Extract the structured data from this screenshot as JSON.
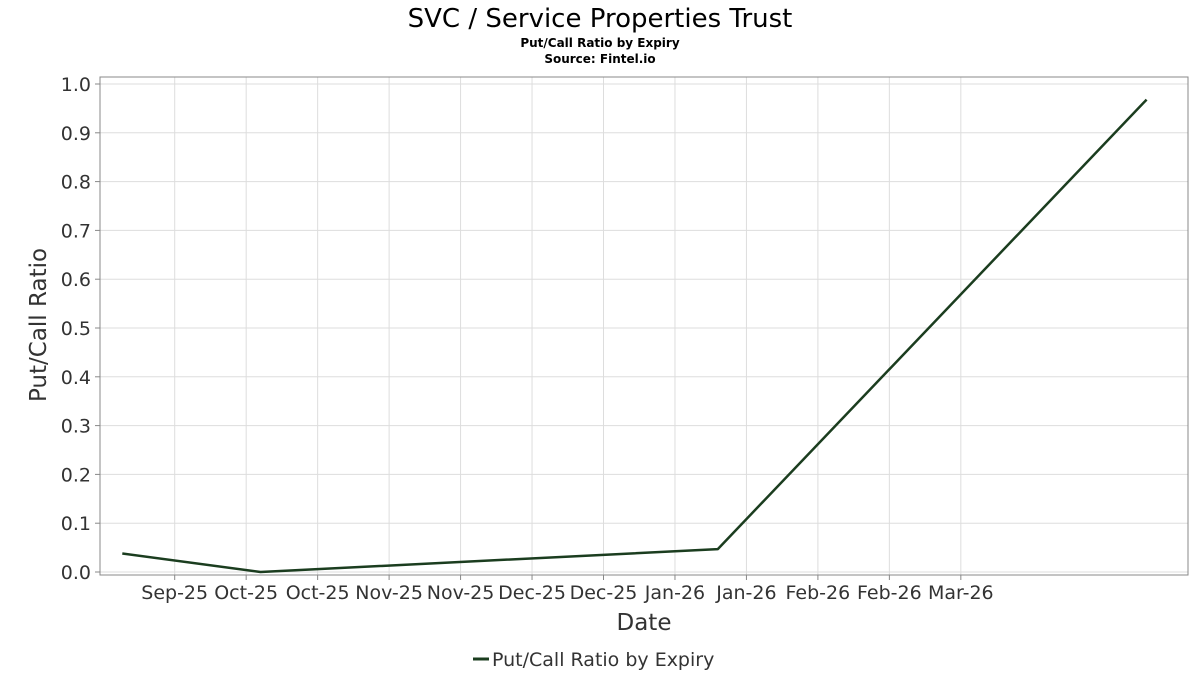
{
  "chart_data": {
    "type": "line",
    "title": "SVC / Service Properties Trust",
    "subtitle": "Put/Call Ratio by Expiry",
    "source": "Source: Fintel.io",
    "xlabel": "Date",
    "ylabel": "Put/Call Ratio",
    "x_range": [
      "2025-08-18",
      "2026-03-31"
    ],
    "ylim": [
      0,
      1.01
    ],
    "y_ticks": [
      0.0,
      0.1,
      0.2,
      0.3,
      0.4,
      0.5,
      0.6,
      0.7,
      0.8,
      0.9,
      1.0
    ],
    "x_ticks": [
      {
        "date": "2025-09-01",
        "label": "Sep-25"
      },
      {
        "date": "2025-09-16",
        "label": "Oct-25"
      },
      {
        "date": "2025-10-01",
        "label": "Oct-25"
      },
      {
        "date": "2025-10-16",
        "label": "Nov-25"
      },
      {
        "date": "2025-10-31",
        "label": "Nov-25"
      },
      {
        "date": "2025-11-15",
        "label": "Dec-25"
      },
      {
        "date": "2025-11-30",
        "label": "Dec-25"
      },
      {
        "date": "2025-12-15",
        "label": "Jan-26"
      },
      {
        "date": "2025-12-30",
        "label": "Jan-26"
      },
      {
        "date": "2026-01-14",
        "label": "Feb-26"
      },
      {
        "date": "2026-01-29",
        "label": "Feb-26"
      },
      {
        "date": "2026-02-13",
        "label": "Mar-26"
      }
    ],
    "grid": true,
    "legend_position": "bottom-center",
    "series": [
      {
        "name": "Put/Call Ratio by Expiry",
        "color": "#1b3d1f",
        "points": [
          {
            "x": "2025-08-21",
            "y": 0.038
          },
          {
            "x": "2025-09-19",
            "y": 0.0
          },
          {
            "x": "2025-12-24",
            "y": 0.047
          },
          {
            "x": "2026-03-24",
            "y": 0.968
          }
        ]
      }
    ]
  }
}
